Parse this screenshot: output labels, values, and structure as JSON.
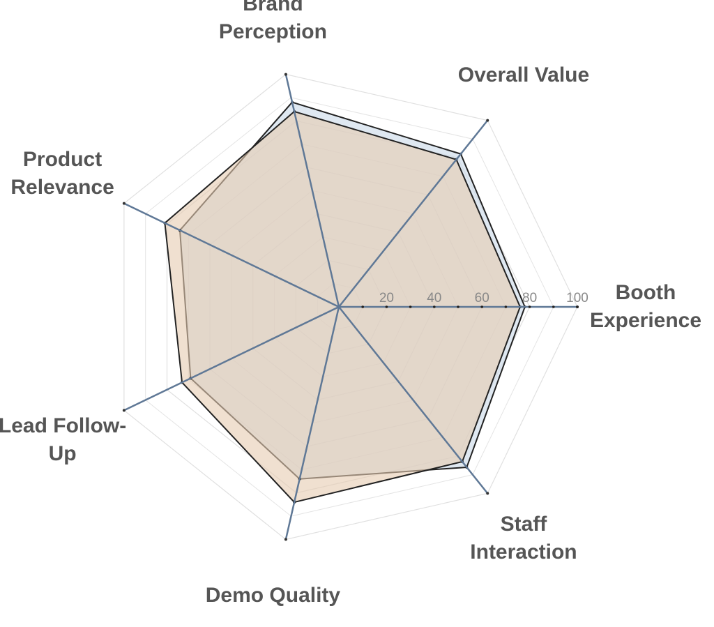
{
  "chart_data": {
    "type": "radar",
    "categories": [
      "Booth Experience",
      "Overall Value",
      "Brand Perception",
      "Product Relevance",
      "Lead Follow-Up",
      "Demo Quality",
      "Staff Interaction"
    ],
    "series": [
      {
        "color": "#c9d9e8",
        "values": [
          78,
          82,
          88,
          74,
          69,
          74,
          86
        ]
      },
      {
        "color": "#e6cbb0",
        "values": [
          76,
          79,
          84,
          81,
          73,
          84,
          83
        ]
      }
    ],
    "ylim": [
      0,
      100
    ],
    "yticks": [
      20,
      40,
      60,
      80,
      100
    ],
    "grid": true
  }
}
